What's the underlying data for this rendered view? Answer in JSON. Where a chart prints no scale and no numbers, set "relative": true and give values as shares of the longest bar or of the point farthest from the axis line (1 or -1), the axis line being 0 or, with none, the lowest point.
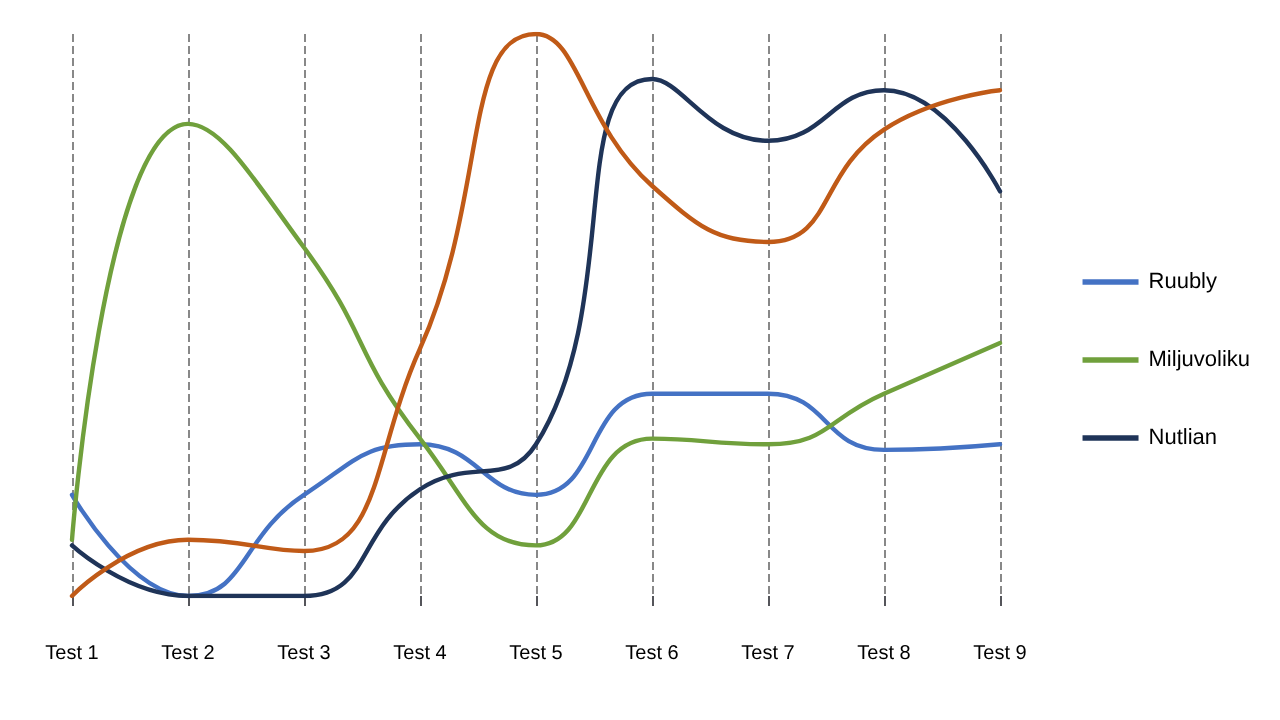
{
  "chart_data": {
    "type": "line",
    "relative": true,
    "categories": [
      "Test 1",
      "Test 2",
      "Test 3",
      "Test 4",
      "Test 5",
      "Test 6",
      "Test 7",
      "Test 8",
      "Test 9"
    ],
    "series": [
      {
        "name": "Ruubly",
        "color": "#4472c4",
        "values": [
          0.18,
          0,
          0.18,
          0.27,
          0.18,
          0.36,
          0.36,
          0.26,
          0.27
        ]
      },
      {
        "name": "Miljuvoliku",
        "color": "#70a03c",
        "values": [
          0.1,
          0.84,
          0.62,
          0.28,
          0.09,
          0.28,
          0.27,
          0.36,
          0.45
        ]
      },
      {
        "name": "Nutlian",
        "color": "#1f3458",
        "values": [
          0.09,
          0,
          0,
          0.19,
          0.27,
          0.92,
          0.81,
          0.9,
          0.72
        ]
      },
      {
        "color": "#c05a17",
        "values": [
          0,
          0.1,
          0.08,
          0.44,
          1,
          0.73,
          0.63,
          0.83,
          0.9
        ]
      }
    ],
    "grid": "x",
    "legend": "right",
    "marker": "none",
    "line_style": "solid"
  }
}
